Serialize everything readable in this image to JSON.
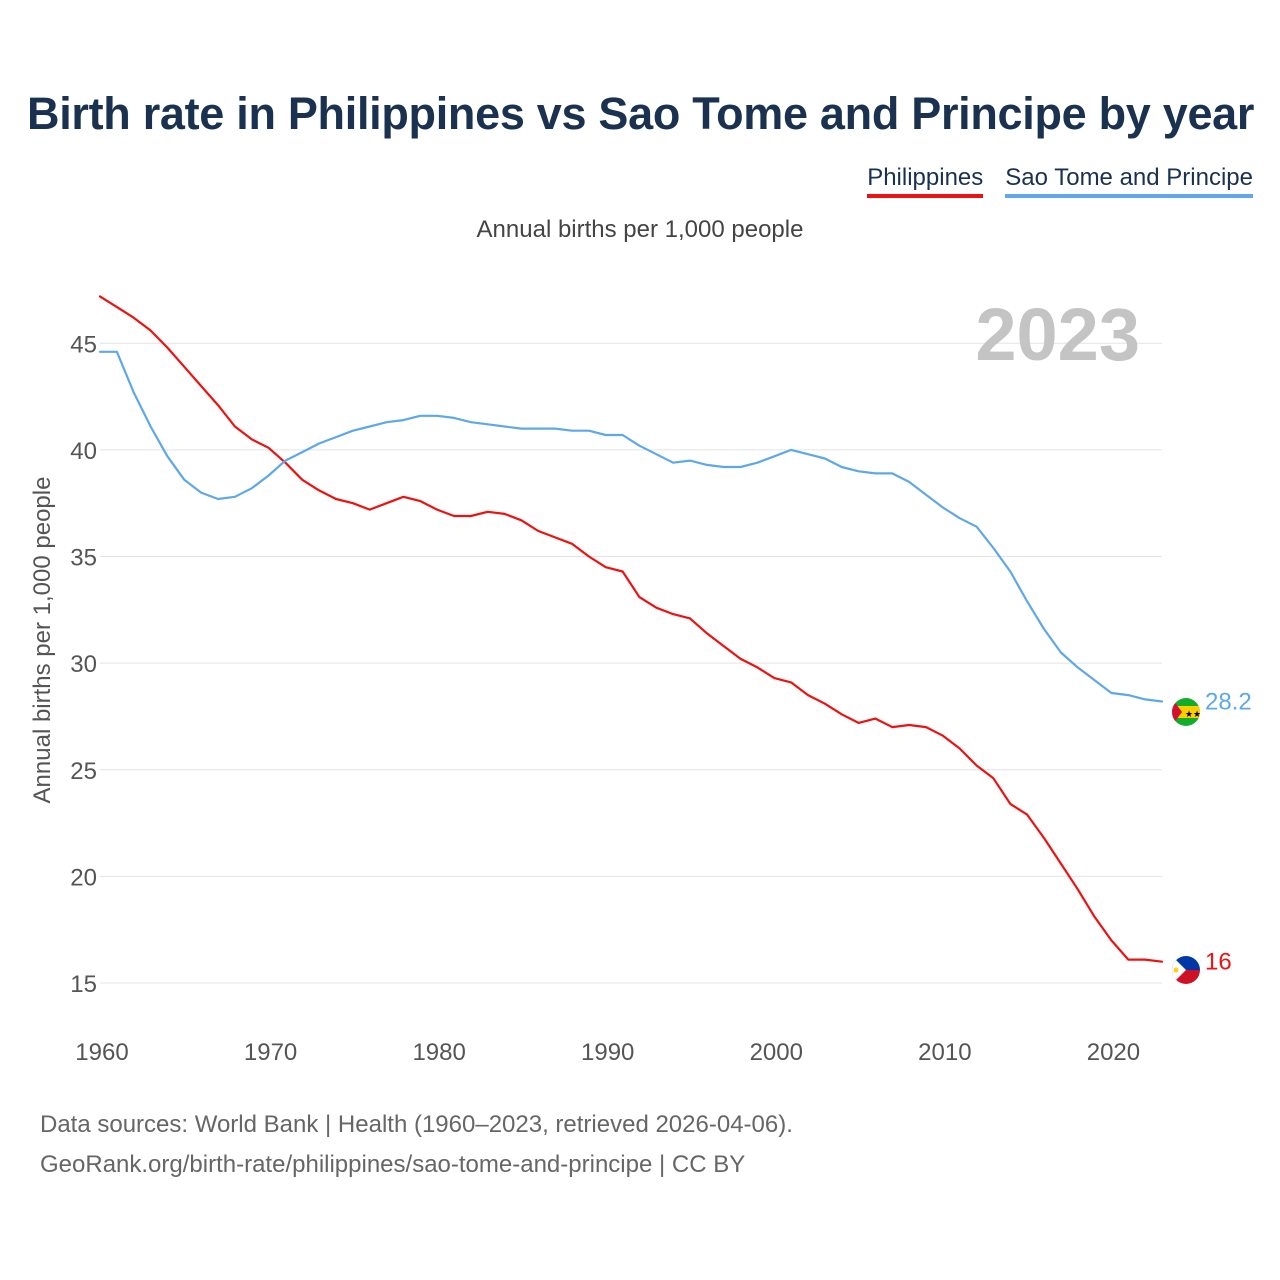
{
  "title": "Birth rate in Philippines vs Sao Tome and Principe by year",
  "legend": [
    {
      "label": "Philippines",
      "color": "#ee1111"
    },
    {
      "label": "Sao Tome and Principe",
      "color": "#5fa8e8"
    }
  ],
  "subtitle": "Annual births per 1,000 people",
  "source": {
    "line1": "Data sources: World Bank | Health (1960–2023, retrieved 2026-04-06).",
    "line2": "GeoRank.org/birth-rate/philippines/sao-tome-and-principe | CC BY"
  },
  "chart_data": {
    "type": "line",
    "title": "Birth rate in Philippines vs Sao Tome and Principe by year",
    "xlabel": "",
    "ylabel": "Annual births per 1,000 people",
    "year_label": "2023",
    "xlim": [
      1960,
      2023
    ],
    "ylim": [
      13.5,
      47.5
    ],
    "x_ticks": [
      1960,
      1970,
      1980,
      1990,
      2000,
      2010,
      2020
    ],
    "y_ticks": [
      15,
      20,
      25,
      30,
      35,
      40,
      45
    ],
    "grid": true,
    "x": [
      1960,
      1961,
      1962,
      1963,
      1964,
      1965,
      1966,
      1967,
      1968,
      1969,
      1970,
      1971,
      1972,
      1973,
      1974,
      1975,
      1976,
      1977,
      1978,
      1979,
      1980,
      1981,
      1982,
      1983,
      1984,
      1985,
      1986,
      1987,
      1988,
      1989,
      1990,
      1991,
      1992,
      1993,
      1994,
      1995,
      1996,
      1997,
      1998,
      1999,
      2000,
      2001,
      2002,
      2003,
      2004,
      2005,
      2006,
      2007,
      2008,
      2009,
      2010,
      2011,
      2012,
      2013,
      2014,
      2015,
      2016,
      2017,
      2018,
      2019,
      2020,
      2021,
      2022,
      2023
    ],
    "series": [
      {
        "name": "Philippines",
        "color": "#ee1111",
        "end_label": "16",
        "values": [
          47.2,
          46.7,
          46.2,
          45.6,
          44.8,
          43.9,
          43.0,
          42.1,
          41.1,
          40.5,
          40.1,
          39.4,
          38.6,
          38.1,
          37.7,
          37.5,
          37.2,
          37.5,
          37.8,
          37.6,
          37.2,
          36.9,
          36.9,
          37.1,
          37.0,
          36.7,
          36.2,
          35.9,
          35.6,
          35.0,
          34.5,
          34.3,
          33.1,
          32.6,
          32.3,
          32.1,
          31.4,
          30.8,
          30.2,
          29.8,
          29.3,
          29.1,
          28.5,
          28.1,
          27.6,
          27.2,
          27.4,
          27.0,
          27.1,
          27.0,
          26.6,
          26.0,
          25.2,
          24.6,
          23.4,
          22.9,
          21.8,
          20.6,
          19.4,
          18.1,
          17.0,
          16.1,
          16.1,
          16.0
        ]
      },
      {
        "name": "Sao Tome and Principe",
        "color": "#5fa8e8",
        "end_label": "28.2",
        "values": [
          44.6,
          44.6,
          42.7,
          41.1,
          39.7,
          38.6,
          38.0,
          37.7,
          37.8,
          38.2,
          38.8,
          39.5,
          39.9,
          40.3,
          40.6,
          40.9,
          41.1,
          41.3,
          41.4,
          41.6,
          41.6,
          41.5,
          41.3,
          41.2,
          41.1,
          41.0,
          41.0,
          41.0,
          40.9,
          40.9,
          40.7,
          40.7,
          40.2,
          39.8,
          39.4,
          39.5,
          39.3,
          39.2,
          39.2,
          39.4,
          39.7,
          40.0,
          39.8,
          39.6,
          39.2,
          39.0,
          38.9,
          38.9,
          38.5,
          37.9,
          37.3,
          36.8,
          36.4,
          35.4,
          34.3,
          32.9,
          31.6,
          30.5,
          29.8,
          29.2,
          28.6,
          28.5,
          28.3,
          28.2
        ]
      }
    ]
  }
}
